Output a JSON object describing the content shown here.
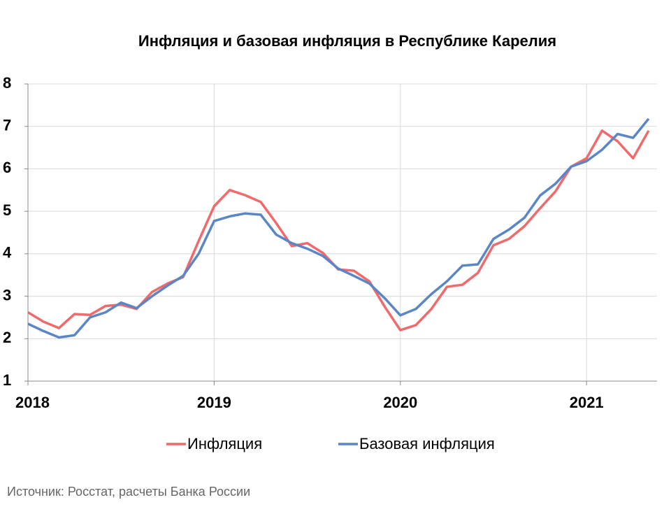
{
  "chart_data": {
    "type": "line",
    "title": "Инфляция и базовая инфляция в Республике Карелия",
    "source": "Источник: Росстат, расчеты Банка России",
    "categories": [
      "2018",
      null,
      null,
      null,
      null,
      null,
      null,
      null,
      null,
      null,
      null,
      null,
      "2019",
      null,
      null,
      null,
      null,
      null,
      null,
      null,
      null,
      null,
      null,
      null,
      "2020",
      null,
      null,
      null,
      null,
      null,
      null,
      null,
      null,
      null,
      null,
      null,
      "2021",
      null,
      null,
      null,
      null
    ],
    "series": [
      {
        "name": "Инфляция",
        "color": "#f0696b",
        "values": [
          2.62,
          2.4,
          2.25,
          2.58,
          2.56,
          2.77,
          2.8,
          2.7,
          3.1,
          3.3,
          3.45,
          4.3,
          5.12,
          5.5,
          5.38,
          5.22,
          4.72,
          4.18,
          4.25,
          4.02,
          3.63,
          3.6,
          3.35,
          2.75,
          2.2,
          2.32,
          2.7,
          3.22,
          3.27,
          3.55,
          4.2,
          4.35,
          4.65,
          5.07,
          5.47,
          6.05,
          6.25,
          6.9,
          6.65,
          6.25,
          6.9
        ]
      },
      {
        "name": "Базовая инфляция",
        "color": "#5b86c5",
        "values": [
          2.35,
          2.18,
          2.03,
          2.08,
          2.5,
          2.62,
          2.85,
          2.72,
          3.0,
          3.25,
          3.48,
          4.0,
          4.77,
          4.88,
          4.95,
          4.92,
          4.45,
          4.25,
          4.12,
          3.95,
          3.65,
          3.48,
          3.3,
          2.95,
          2.55,
          2.7,
          3.05,
          3.35,
          3.72,
          3.75,
          4.35,
          4.57,
          4.85,
          5.37,
          5.65,
          6.05,
          6.18,
          6.45,
          6.82,
          6.73,
          7.18
        ]
      }
    ],
    "ylim": [
      1,
      8
    ],
    "yticks": [
      1,
      2,
      3,
      4,
      5,
      6,
      7,
      8
    ],
    "grid": true
  }
}
